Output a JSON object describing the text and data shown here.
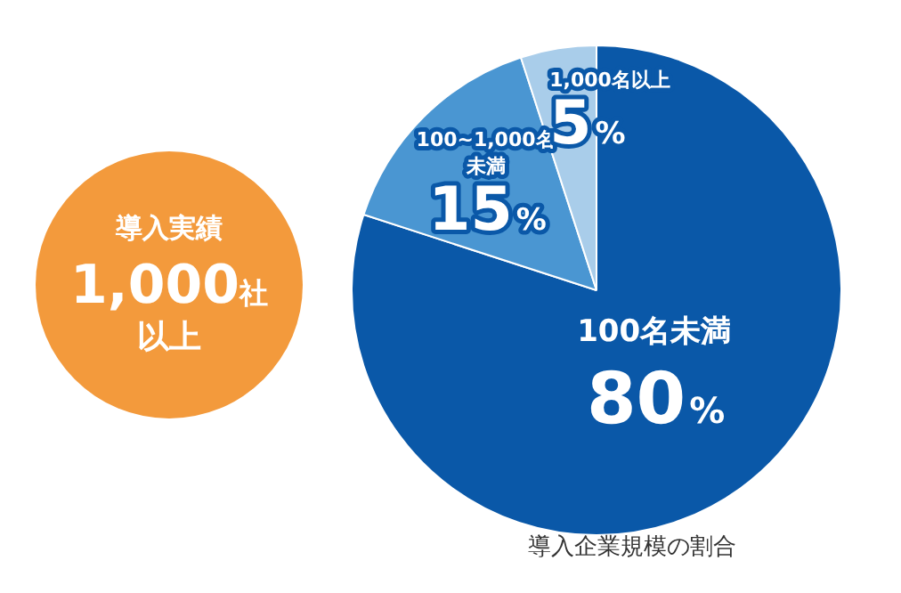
{
  "chart_data": [
    {
      "type": "other",
      "color": "#f39a3c",
      "annotations": [
        "導入実績",
        "1,000社",
        "以上"
      ]
    },
    {
      "type": "pie",
      "categories": [
        "100名未満",
        "100~1,000名未満",
        "1,000名以上"
      ],
      "values": [
        80,
        15,
        5
      ],
      "colors": [
        "#0a58a8",
        "#4a96d2",
        "#a9cdea"
      ],
      "value_labels": [
        "80%",
        "15%",
        "5%"
      ],
      "legend": false,
      "annotations": [
        "導入企業規模の割合"
      ]
    }
  ]
}
